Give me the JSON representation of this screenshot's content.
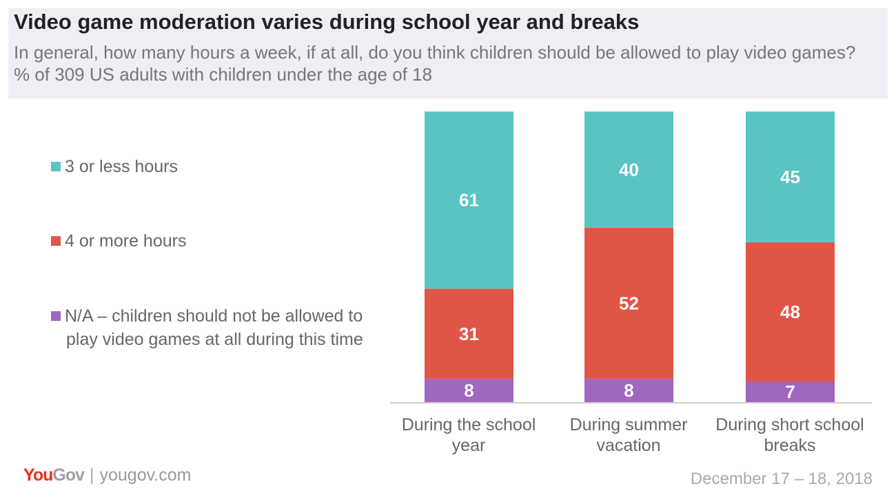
{
  "title": "Video game moderation varies during school year and breaks",
  "subtitle": "In general, how many hours a week, if at all, do you think children should be allowed to play video games? % of 309 US adults with children under the age of 18",
  "footer": {
    "brand": "YouGov",
    "url": "yougov.com",
    "date": "December 17 – 18, 2018"
  },
  "chart_data": {
    "type": "bar",
    "stacked": true,
    "categories": [
      "During the school year",
      "During summer vacation",
      "During short school breaks"
    ],
    "series": [
      {
        "name": "N/A – children should not be allowed to play video games at all during this time",
        "color": "#a066c0",
        "values": [
          8,
          8,
          7
        ]
      },
      {
        "name": "4 or more hours",
        "color": "#e15546",
        "values": [
          31,
          52,
          48
        ]
      },
      {
        "name": "3 or less hours",
        "color": "#58c5c3",
        "values": [
          61,
          40,
          45
        ]
      }
    ],
    "ylim": [
      0,
      100
    ],
    "legend": "left",
    "grid": false
  }
}
